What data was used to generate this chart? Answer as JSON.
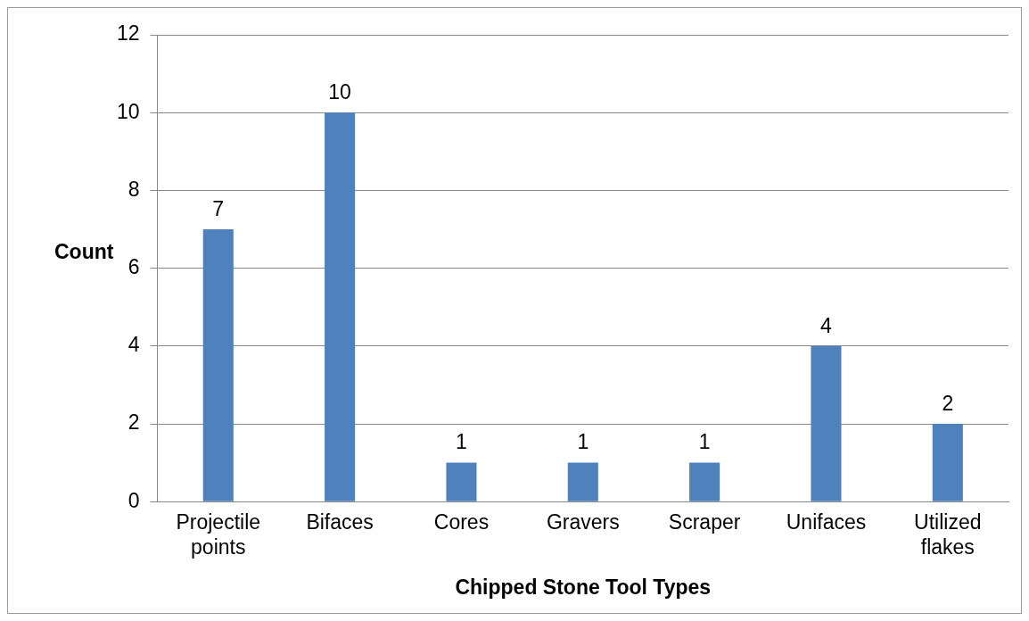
{
  "chart_data": {
    "type": "bar",
    "xlabel": "Chipped Stone Tool Types",
    "ylabel": "Count",
    "categories": [
      "Projectile points",
      "Bifaces",
      "Cores",
      "Gravers",
      "Scraper",
      "Unifaces",
      "Utilized flakes"
    ],
    "values": [
      7,
      10,
      1,
      1,
      1,
      4,
      2
    ],
    "color": "#4f81bd",
    "ylim": [
      0,
      12
    ],
    "yticks": [
      0,
      2,
      4,
      6,
      8,
      10,
      12
    ],
    "grid": "y",
    "data_labels": true
  }
}
